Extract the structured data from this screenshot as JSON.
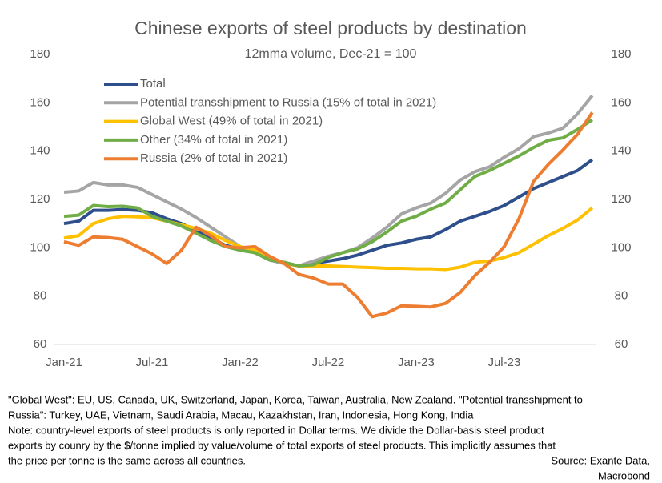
{
  "chart_data": {
    "type": "line",
    "title": "Chinese exports of steel products by destination",
    "subtitle": "12mma volume, Dec-21 = 100",
    "categories": [
      "Jan-21",
      null,
      null,
      null,
      null,
      null,
      "Jul-21",
      null,
      null,
      null,
      null,
      null,
      "Jan-22",
      null,
      null,
      null,
      null,
      null,
      "Jul-22",
      null,
      null,
      null,
      null,
      null,
      "Jan-23",
      null,
      null,
      null,
      null,
      null,
      "Jul-23",
      null,
      null,
      null,
      null,
      null,
      null
    ],
    "series": [
      {
        "name": "Total",
        "color": "#2e4f8c",
        "values": [
          110,
          111,
          115.5,
          115.5,
          115.8,
          115.5,
          114.5,
          112,
          110,
          107,
          104,
          101,
          99.5,
          98,
          95,
          93.5,
          92.5,
          93.5,
          94.5,
          95.5,
          97,
          99,
          101,
          102,
          103.5,
          104.5,
          107.5,
          111,
          113,
          115,
          117.5,
          121,
          124.5,
          127,
          129.5,
          132,
          136.5
        ]
      },
      {
        "name": "Potential transshipment to Russia (15% of total in 2021)",
        "color": "#a5a5a5",
        "values": [
          123,
          123.5,
          127,
          126,
          126,
          125,
          122,
          119,
          116,
          112.5,
          108.5,
          104.5,
          100.5,
          98,
          95,
          93.5,
          92.5,
          94.5,
          96.5,
          98,
          100,
          104,
          108.5,
          114,
          116.5,
          118.5,
          122.5,
          128,
          131.5,
          133.5,
          137.5,
          141,
          146,
          147.5,
          149.5,
          155.5,
          163
        ]
      },
      {
        "name": "Global West (49% of total in 2021)",
        "color": "#ffc000",
        "values": [
          104,
          105,
          110,
          112,
          113,
          112.8,
          112.5,
          111,
          109.5,
          108,
          106,
          103,
          100.5,
          99,
          96,
          93.5,
          92.5,
          92.5,
          92.5,
          92.3,
          92,
          91.8,
          91.5,
          91.5,
          91.3,
          91.3,
          91,
          92,
          94,
          94.5,
          96,
          98,
          101.5,
          105,
          108,
          111.5,
          116.5
        ]
      },
      {
        "name": "Other (34% of total in 2021)",
        "color": "#70ad47",
        "values": [
          113,
          113.5,
          117.5,
          117,
          117.2,
          116.5,
          113,
          111,
          109,
          106,
          103,
          100.5,
          99,
          98,
          95,
          94,
          92.5,
          93,
          96,
          98,
          99.5,
          102.5,
          106.5,
          111,
          113,
          116,
          118.5,
          124,
          129.5,
          132,
          135,
          138,
          141.5,
          144.5,
          145.5,
          149,
          153
        ]
      },
      {
        "name": "Russia (2% of total in 2021)",
        "color": "#ed7d31",
        "values": [
          102.5,
          101,
          104.5,
          104.2,
          103.5,
          100.5,
          97.5,
          93.5,
          99,
          108.5,
          105,
          100.5,
          100,
          100.5,
          96.5,
          93.5,
          89,
          87.5,
          85,
          85,
          79.5,
          71.5,
          73,
          76,
          75.8,
          75.5,
          77,
          81.5,
          88.5,
          94,
          100.5,
          112,
          127.5,
          134.5,
          140.5,
          147,
          156
        ]
      }
    ],
    "ylim": [
      60,
      180
    ],
    "yticks": [
      60,
      80,
      100,
      120,
      140,
      160,
      180
    ],
    "grid": false,
    "legend": "top-left"
  },
  "notes": [
    "\"Global West\": EU, US, Canada, UK, Switzerland, Japan, Korea, Taiwan, Australia, New Zealand. \"Potential transshipment to",
    "Russia\": Turkey, UAE, Vietnam, Saudi Arabia, Macau, Kazakhstan, Iran, Indonesia, Hong Kong, India",
    "Note: country-level exports of steel products is only reported in Dollar terms. We divide the Dollar-basis steel product",
    "exports by counry by the $/tonne implied by value/volume of total exports of steel products. This implicitly assumes that",
    "the price per tonne is the same across all countries."
  ],
  "source": [
    "Source: Exante Data,",
    "Macrobond"
  ]
}
